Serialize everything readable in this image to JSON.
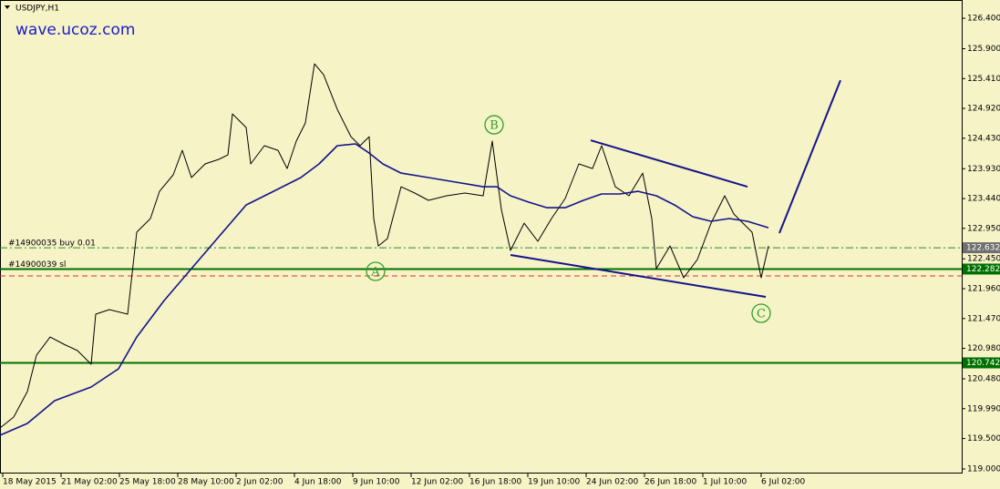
{
  "chart_data": {
    "type": "line",
    "title": "USDJPY,H1",
    "watermark": "wave.ucoz.com",
    "background": "#f6f3c6",
    "series": [
      {
        "color": "#000000",
        "width": 1,
        "x": [
          0,
          15,
          30,
          40,
          55,
          70,
          85,
          100,
          105,
          120,
          140,
          145,
          150,
          165,
          175,
          190,
          200,
          210,
          225,
          240,
          250,
          255,
          270,
          275,
          290,
          305,
          315,
          325,
          335,
          345,
          355,
          370,
          385,
          395,
          405,
          410,
          415,
          425,
          440,
          455,
          470,
          490,
          510,
          530,
          540,
          550,
          560,
          575,
          590,
          605,
          620,
          635,
          650,
          660,
          675,
          690,
          705,
          715,
          720,
          735,
          750,
          765,
          780,
          795,
          805,
          815,
          825,
          835,
          843
        ],
        "values": [
          119.673,
          119.852,
          120.27,
          120.868,
          121.167,
          121.048,
          120.943,
          120.719,
          121.541,
          121.616,
          121.541,
          122.214,
          122.887,
          123.111,
          123.559,
          123.829,
          124.232,
          123.784,
          124.008,
          124.083,
          124.157,
          124.83,
          124.606,
          124.008,
          124.307,
          124.232,
          123.933,
          124.382,
          124.681,
          125.652,
          125.473,
          124.905,
          124.456,
          124.307,
          124.456,
          123.111,
          122.662,
          122.782,
          123.634,
          123.53,
          123.41,
          123.485,
          123.53,
          123.485,
          124.382,
          123.26,
          122.588,
          123.036,
          122.737,
          123.111,
          123.44,
          124.008,
          123.933,
          124.307,
          123.634,
          123.485,
          123.858,
          123.111,
          122.289,
          122.662,
          122.139,
          122.438,
          123.036,
          123.485,
          123.186,
          123.036,
          122.887,
          122.139,
          122.662
        ]
      },
      {
        "color": "#14148c",
        "width": 1.6,
        "x": [
          0,
          30,
          60,
          100,
          130,
          150,
          180,
          210,
          240,
          270,
          300,
          330,
          350,
          370,
          390,
          405,
          420,
          440,
          470,
          500,
          530,
          545,
          560,
          580,
          600,
          620,
          640,
          660,
          680,
          700,
          720,
          740,
          760,
          780,
          800,
          820,
          843
        ],
        "values": [
          119.553,
          119.747,
          120.121,
          120.345,
          120.644,
          121.167,
          121.765,
          122.289,
          122.812,
          123.335,
          123.559,
          123.784,
          124.008,
          124.307,
          124.337,
          124.187,
          124.008,
          123.858,
          123.784,
          123.709,
          123.634,
          123.634,
          123.485,
          123.38,
          123.29,
          123.29,
          123.41,
          123.515,
          123.515,
          123.559,
          123.485,
          123.335,
          123.141,
          123.066,
          123.111,
          123.066,
          122.961
        ]
      }
    ],
    "trendlines": [
      {
        "color": "#14148c",
        "x": [
          648,
          820
        ],
        "values": [
          124.397,
          123.634
        ]
      },
      {
        "color": "#14148c",
        "x": [
          560,
          840
        ],
        "values": [
          122.513,
          121.825
        ]
      },
      {
        "color": "#14148c",
        "x": [
          855,
          922
        ],
        "values": [
          122.872,
          125.383
        ]
      }
    ],
    "levels": [
      {
        "value": 122.632,
        "color": "#2e8b2e",
        "style": "dashdot",
        "tag": true,
        "tag_color": "#707070",
        "note": "#14900035 buy 0.01"
      },
      {
        "value": 122.282,
        "color": "#007000",
        "style": "solid",
        "tag": true,
        "tag_color": "#007000",
        "note": "#14900039 sl"
      },
      {
        "value": 122.169,
        "color": "#e03030",
        "style": "dash",
        "tag": false
      },
      {
        "value": 120.742,
        "color": "#007000",
        "style": "solid",
        "tag": true,
        "tag_color": "#007000"
      }
    ],
    "wave_labels": [
      {
        "text": "A",
        "x": 412,
        "price": 122.244
      },
      {
        "text": "B",
        "x": 542,
        "price": 124.651
      },
      {
        "text": "C",
        "x": 835,
        "price": 121.556
      }
    ],
    "xlim": [
      0,
      1055
    ],
    "xticks": [
      {
        "value": 3,
        "label": "18 May 2015"
      },
      {
        "value": 67,
        "label": "21 May 02:00"
      },
      {
        "value": 131,
        "label": "25 May 18:00"
      },
      {
        "value": 195,
        "label": "28 May 10:00"
      },
      {
        "value": 259,
        "label": "2 Jun 02:00"
      },
      {
        "value": 323,
        "label": "4 Jun 18:00"
      },
      {
        "value": 387,
        "label": "9 Jun 10:00"
      },
      {
        "value": 451,
        "label": "12 Jun 02:00"
      },
      {
        "value": 515,
        "label": "16 Jun 18:00"
      },
      {
        "value": 579,
        "label": "19 Jun 10:00"
      },
      {
        "value": 643,
        "label": "24 Jun 02:00"
      },
      {
        "value": 707,
        "label": "26 Jun 18:00"
      },
      {
        "value": 771,
        "label": "1 Jul 10:00"
      },
      {
        "value": 835,
        "label": "6 Jul 02:00"
      }
    ],
    "ylim": [
      118.925,
      126.7
    ],
    "yticks": [
      {
        "value": 126.4,
        "label": "126.400"
      },
      {
        "value": 125.9,
        "label": "125.900"
      },
      {
        "value": 125.41,
        "label": "125.410"
      },
      {
        "value": 124.92,
        "label": "124.920"
      },
      {
        "value": 124.43,
        "label": "124.430"
      },
      {
        "value": 123.93,
        "label": "123.930"
      },
      {
        "value": 123.44,
        "label": "123.440"
      },
      {
        "value": 122.95,
        "label": "122.950"
      },
      {
        "value": 122.45,
        "label": "122.450"
      },
      {
        "value": 121.96,
        "label": "121.960"
      },
      {
        "value": 121.47,
        "label": "121.470"
      },
      {
        "value": 120.98,
        "label": "120.980"
      },
      {
        "value": 120.48,
        "label": "120.480"
      },
      {
        "value": 119.99,
        "label": "119.990"
      },
      {
        "value": 119.5,
        "label": "119.500"
      },
      {
        "value": 119.0,
        "label": "119.000"
      }
    ]
  }
}
